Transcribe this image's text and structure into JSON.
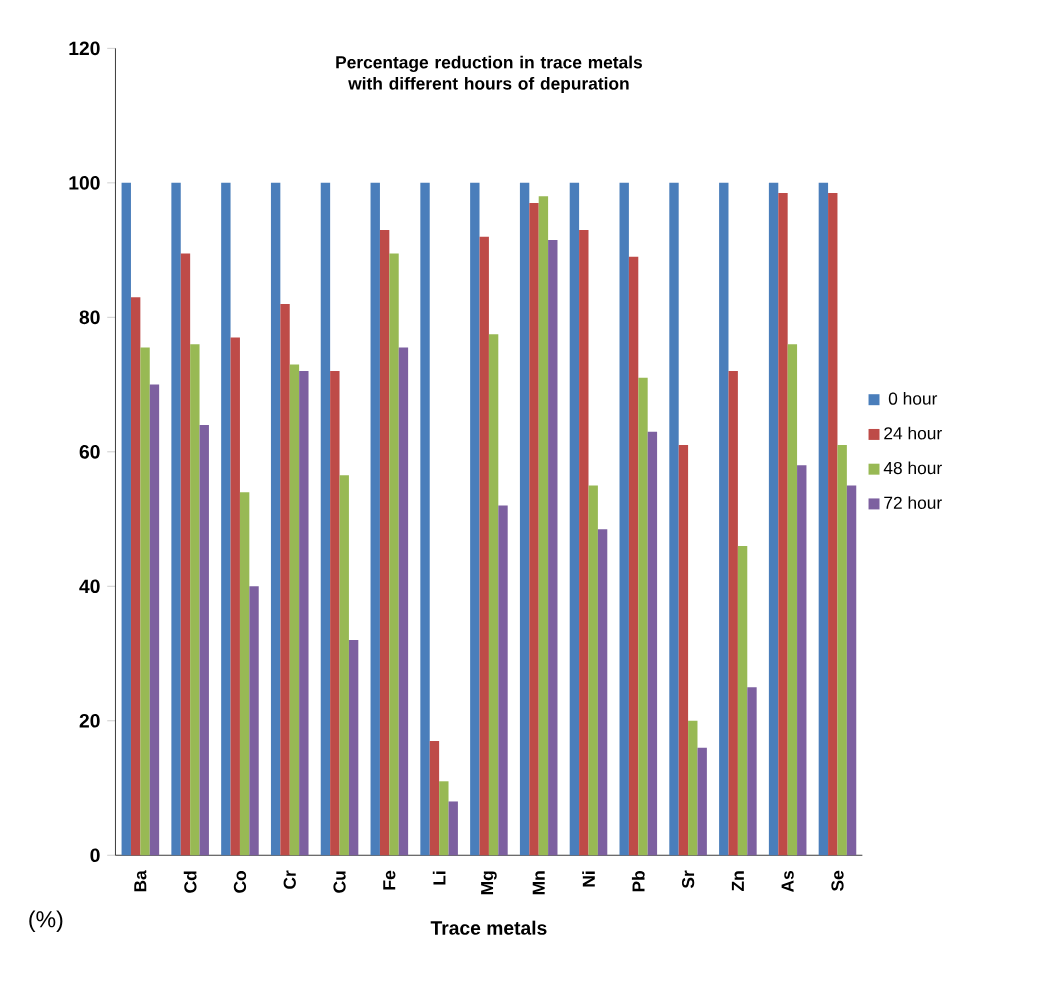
{
  "chart_data": {
    "type": "bar",
    "title": "Percentage reduction in trace metals with different hours of depuration",
    "xlabel": "Trace metals",
    "ylabel": "(%)",
    "categories": [
      "Ba",
      "Cd",
      "Co",
      "Cr",
      "Cu",
      "Fe",
      "Li",
      "Mg",
      "Mn",
      "Ni",
      "Pb",
      "Sr",
      "Zn",
      "As",
      "Se"
    ],
    "series": [
      {
        "name": "0 hour",
        "color": "#4a7ebb",
        "values": [
          100,
          100,
          100,
          100,
          100,
          100,
          100,
          100,
          100,
          100,
          100,
          100,
          100,
          100,
          100
        ]
      },
      {
        "name": "24 hour",
        "color": "#be4b48",
        "values": [
          83,
          89.5,
          77,
          82,
          72,
          93,
          17,
          92,
          97,
          93,
          89,
          61,
          72,
          98.5,
          98.5
        ]
      },
      {
        "name": "48 hour",
        "color": "#98b954",
        "values": [
          75.5,
          76,
          54,
          73,
          56.5,
          89.5,
          11,
          77.5,
          98,
          55,
          71,
          20,
          46,
          76,
          61
        ]
      },
      {
        "name": "72 hour",
        "color": "#7d60a0",
        "values": [
          70,
          64,
          40,
          72,
          32,
          75.5,
          8,
          52,
          91.5,
          48.5,
          63,
          16,
          25,
          58,
          55
        ]
      }
    ],
    "ylim": [
      0,
      120
    ],
    "yticks": [
      0,
      20,
      40,
      60,
      80,
      100,
      120
    ],
    "grid": false,
    "legend": "right"
  }
}
